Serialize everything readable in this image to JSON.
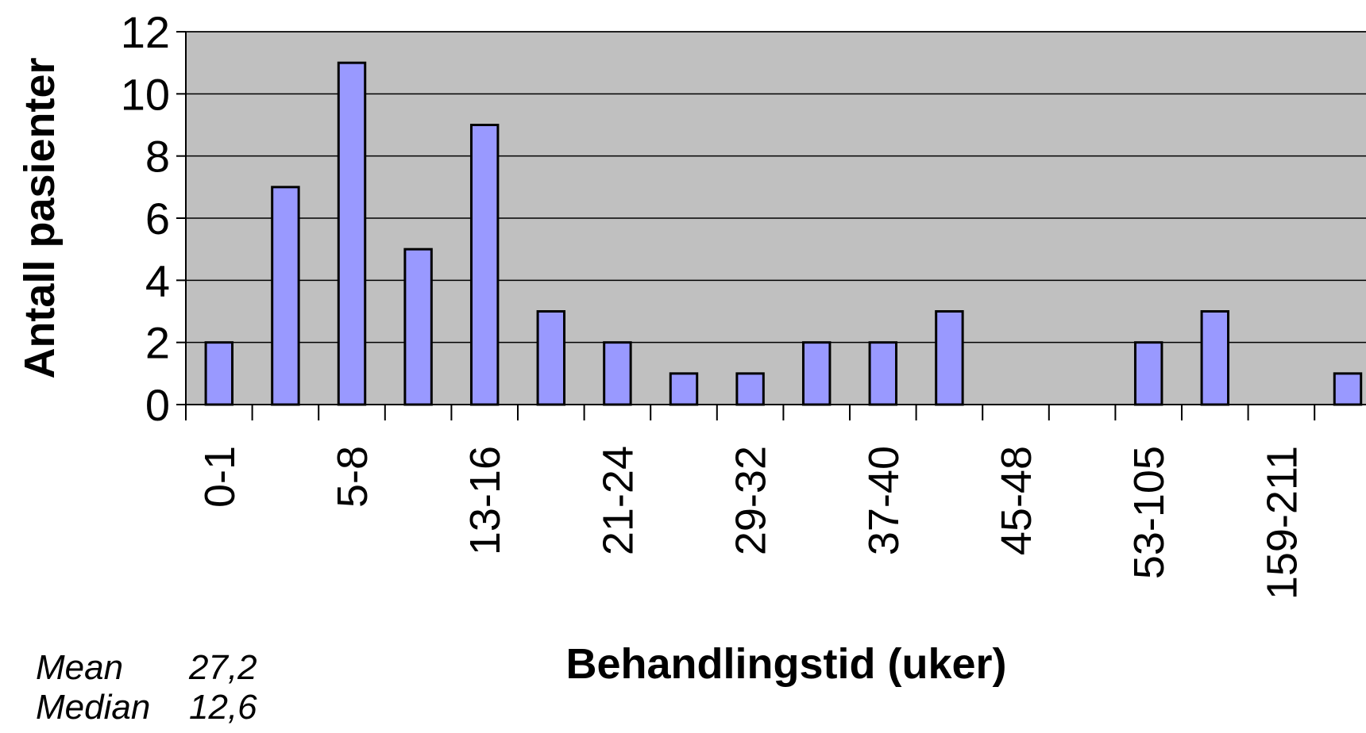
{
  "chart_data": {
    "type": "bar",
    "categories": [
      "0-1",
      null,
      "5-8",
      null,
      "13-16",
      null,
      "21-24",
      null,
      "29-32",
      null,
      "37-40",
      null,
      "45-48",
      null,
      "53-105",
      null,
      "159-211",
      null
    ],
    "values": [
      2,
      7,
      11,
      5,
      9,
      3,
      2,
      1,
      1,
      2,
      2,
      3,
      0,
      0,
      2,
      3,
      0,
      1
    ],
    "color": "#9999ff",
    "ylim": [
      0,
      12
    ],
    "yticks": [
      0,
      2,
      4,
      6,
      8,
      10,
      12
    ],
    "grid": true,
    "y_label": "Antall pasienter",
    "x_label": "Behandlingstid (uker)",
    "stats": [
      {
        "label": "Mean",
        "value": "27,2"
      },
      {
        "label": "Median",
        "value": "12,6"
      }
    ]
  }
}
